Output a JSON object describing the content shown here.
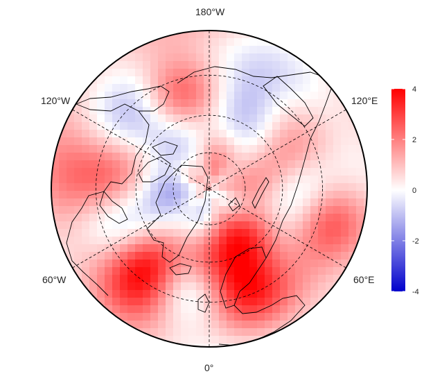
{
  "map": {
    "projection": "north-polar-stereographic",
    "longitude_labels": {
      "top": "180°W",
      "upper_left": "120°W",
      "upper_right": "120°E",
      "lower_left": "60°W",
      "lower_right": "60°E",
      "bottom": "0°"
    },
    "latitude_circles_deg": [
      45,
      60,
      75
    ],
    "meridians_deg": [
      0,
      60,
      120,
      180,
      240,
      300
    ]
  },
  "colorbar": {
    "min": -4,
    "max": 4,
    "ticks": [
      "4",
      "2",
      "0",
      "-2",
      "-4"
    ],
    "tick_values": [
      4,
      2,
      0,
      -2,
      -4
    ],
    "colors": {
      "low": "#0000cc",
      "mid": "#ffffff",
      "high": "#ff0000"
    }
  },
  "field_anomalies": [
    {
      "lon": 200,
      "lat": 52,
      "value": -1.8
    },
    {
      "lon": 250,
      "lat": 58,
      "value": 1.8
    },
    {
      "lon": 265,
      "lat": 50,
      "value": -2.0
    },
    {
      "lon": 285,
      "lat": 38,
      "value": 2.5
    },
    {
      "lon": 318,
      "lat": 65,
      "value": 2.2
    },
    {
      "lon": 340,
      "lat": 48,
      "value": 2.8
    },
    {
      "lon": 0,
      "lat": 58,
      "value": 2.0
    },
    {
      "lon": 12,
      "lat": 48,
      "value": -1.8
    },
    {
      "lon": 38,
      "lat": 48,
      "value": 3.8
    },
    {
      "lon": 65,
      "lat": 58,
      "value": -1.2
    },
    {
      "lon": 95,
      "lat": 45,
      "value": 2.2
    },
    {
      "lon": 135,
      "lat": 52,
      "value": -1.6
    },
    {
      "lon": 160,
      "lat": 48,
      "value": 2.0
    },
    {
      "lon": 120,
      "lat": 72,
      "value": -1.0
    },
    {
      "lon": 45,
      "lat": 72,
      "value": -0.8
    },
    {
      "lon": 300,
      "lat": 78,
      "value": -0.6
    },
    {
      "lon": 180,
      "lat": 80,
      "value": 1.0
    }
  ]
}
